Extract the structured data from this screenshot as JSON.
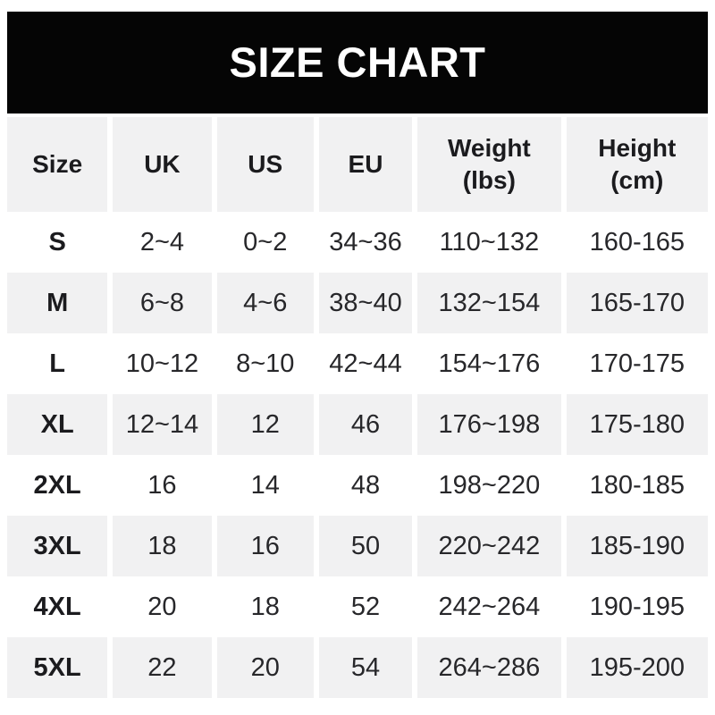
{
  "title": "SIZE CHART",
  "colors": {
    "title_bg": "#050505",
    "title_text": "#ffffff",
    "stripe": "#f1f1f2",
    "row_alt": "#ffffff",
    "text": "#27272a",
    "page_bg": "#ffffff"
  },
  "table": {
    "headers": [
      "Size",
      "UK",
      "US",
      "EU",
      "Weight\n(lbs)",
      "Height\n(cm)"
    ],
    "rows": [
      [
        "S",
        "2~4",
        "0~2",
        "34~36",
        "110~132",
        "160-165"
      ],
      [
        "M",
        "6~8",
        "4~6",
        "38~40",
        "132~154",
        "165-170"
      ],
      [
        "L",
        "10~12",
        "8~10",
        "42~44",
        "154~176",
        "170-175"
      ],
      [
        "XL",
        "12~14",
        "12",
        "46",
        "176~198",
        "175-180"
      ],
      [
        "2XL",
        "16",
        "14",
        "48",
        "198~220",
        "180-185"
      ],
      [
        "3XL",
        "18",
        "16",
        "50",
        "220~242",
        "185-190"
      ],
      [
        "4XL",
        "20",
        "18",
        "52",
        "242~264",
        "190-195"
      ],
      [
        "5XL",
        "22",
        "20",
        "54",
        "264~286",
        "195-200"
      ]
    ]
  },
  "chart_data": {
    "type": "table",
    "title": "SIZE CHART",
    "columns": [
      "Size",
      "UK",
      "US",
      "EU",
      "Weight (lbs)",
      "Height (cm)"
    ],
    "rows": [
      [
        "S",
        "2~4",
        "0~2",
        "34~36",
        "110~132",
        "160-165"
      ],
      [
        "M",
        "6~8",
        "4~6",
        "38~40",
        "132~154",
        "165-170"
      ],
      [
        "L",
        "10~12",
        "8~10",
        "42~44",
        "154~176",
        "170-175"
      ],
      [
        "XL",
        "12~14",
        "12",
        "46",
        "176~198",
        "175-180"
      ],
      [
        "2XL",
        "16",
        "14",
        "48",
        "198~220",
        "180-185"
      ],
      [
        "3XL",
        "18",
        "16",
        "50",
        "220~242",
        "185-190"
      ],
      [
        "4XL",
        "20",
        "18",
        "52",
        "242~264",
        "190-195"
      ],
      [
        "5XL",
        "22",
        "20",
        "54",
        "264~286",
        "195-200"
      ]
    ],
    "layout": {
      "header_background": "#f1f1f2",
      "striped_rows": true,
      "stripe_background": "#f1f1f2",
      "cell_alignment": "center"
    }
  }
}
